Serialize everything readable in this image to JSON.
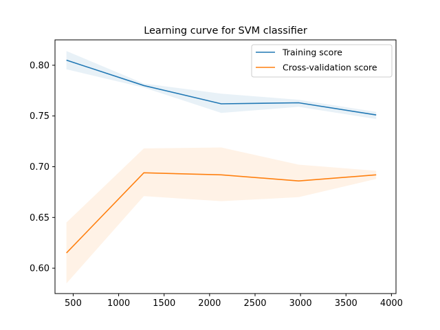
{
  "chart_data": {
    "type": "line",
    "title": "Learning curve for SVM classifier",
    "xlabel": "",
    "ylabel": "",
    "xlim": [
      300,
      4050
    ],
    "ylim": [
      0.575,
      0.825
    ],
    "xticks": [
      500,
      1000,
      1500,
      2000,
      2500,
      3000,
      3500,
      4000
    ],
    "yticks": [
      0.6,
      0.65,
      0.7,
      0.75,
      0.8
    ],
    "ytick_format": 2,
    "grid": false,
    "legend_position": "top-right",
    "x": [
      426,
      1277,
      2128,
      2980,
      3832
    ],
    "series": [
      {
        "name": "Training score",
        "color": "#1f77b4",
        "values": [
          0.805,
          0.78,
          0.762,
          0.763,
          0.751
        ],
        "lower": [
          0.796,
          0.778,
          0.753,
          0.759,
          0.747
        ],
        "upper": [
          0.814,
          0.782,
          0.772,
          0.766,
          0.754
        ]
      },
      {
        "name": "Cross-validation score",
        "color": "#ff7f0e",
        "values": [
          0.615,
          0.694,
          0.692,
          0.686,
          0.692
        ],
        "lower": [
          0.585,
          0.671,
          0.666,
          0.67,
          0.688
        ],
        "upper": [
          0.645,
          0.718,
          0.719,
          0.702,
          0.696
        ]
      }
    ]
  }
}
